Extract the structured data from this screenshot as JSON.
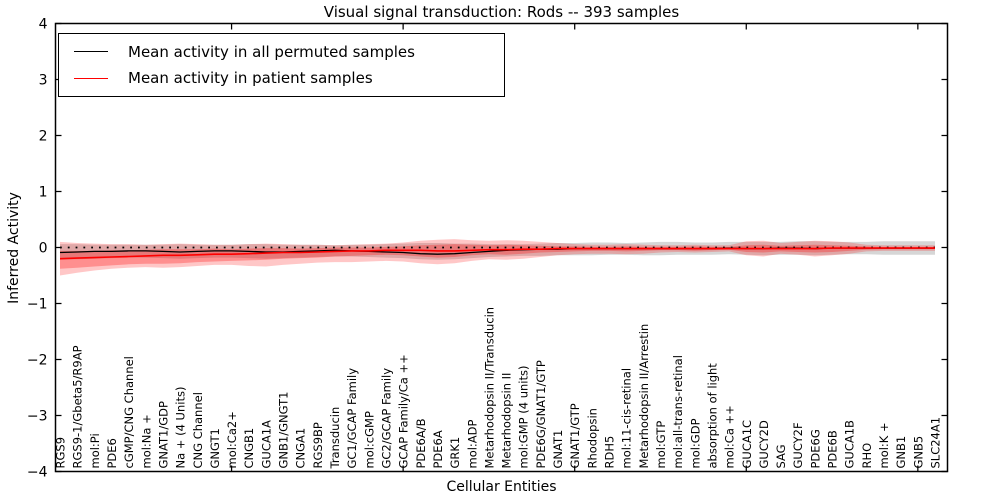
{
  "figure": {
    "title": "Visual signal transduction: Rods -- 393 samples",
    "xlabel": "Cellular Entities",
    "ylabel": "Inferred Activity",
    "legend": {
      "items": [
        {
          "label": "Mean activity in all permuted samples",
          "color": "#000000"
        },
        {
          "label": "Mean activity in patient samples",
          "color": "#ff0000"
        }
      ]
    }
  },
  "chart_data": {
    "type": "line",
    "title": "Visual signal transduction: Rods -- 393 samples",
    "xlabel": "Cellular Entities",
    "ylabel": "Inferred Activity",
    "ylim": [
      -4,
      4
    ],
    "yticks": [
      4,
      3,
      2,
      1,
      0,
      -1,
      -2,
      -3,
      -4
    ],
    "xtick_positions": [
      10,
      20,
      30,
      40,
      50
    ],
    "grid": false,
    "legend_position": "upper left",
    "zero_line": {
      "value": 0,
      "style": "dotted",
      "color": "#000000"
    },
    "categories": [
      "RGS9",
      "RGS9-1/Gbeta5/R9AP",
      "mol:Pi",
      "PDE6",
      "cGMP/CNG Channel",
      "mol:Na +",
      "GNAT1/GDP",
      "Na + (4 Units)",
      "CNG Channel",
      "GNGT1",
      "mol:Ca2+",
      "CNGB1",
      "GUCA1A",
      "GNB1/GNGT1",
      "CNGA1",
      "RGS9BP",
      "Transducin",
      "GC1/GCAP Family",
      "mol:cGMP",
      "GC2/GCAP Family",
      "GCAP Family/Ca ++",
      "PDE6A/B",
      "PDE6A",
      "GRK1",
      "mol:ADP",
      "Metarhodopsin II/Transducin",
      "Metarhodopsin II",
      "mol:GMP (4 units)",
      "PDE6G/GNAT1/GTP",
      "GNAT1",
      "GNAT1/GTP",
      "Rhodopsin",
      "RDH5",
      "mol:11-cis-retinal",
      "Metarhodopsin II/Arrestin",
      "mol:GTP",
      "mol:all-trans-retinal",
      "mol:GDP",
      "absorption of light",
      "mol:Ca ++",
      "GUCA1C",
      "GUCY2D",
      "SAG",
      "GUCY2F",
      "PDE6G",
      "PDE6B",
      "GUCA1B",
      "RHO",
      "mol:K +",
      "GNB1",
      "GNB5",
      "SLC24A1"
    ],
    "series": [
      {
        "name": "Mean activity in all permuted samples",
        "color": "#000000",
        "values": [
          -0.09,
          -0.08,
          -0.07,
          -0.07,
          -0.06,
          -0.06,
          -0.07,
          -0.08,
          -0.07,
          -0.06,
          -0.06,
          -0.07,
          -0.08,
          -0.08,
          -0.07,
          -0.06,
          -0.05,
          -0.06,
          -0.07,
          -0.08,
          -0.09,
          -0.11,
          -0.12,
          -0.11,
          -0.09,
          -0.07,
          -0.05,
          -0.04,
          -0.03,
          -0.03,
          -0.02,
          -0.02,
          -0.02,
          -0.02,
          -0.02,
          -0.02,
          -0.02,
          -0.02,
          -0.02,
          -0.01,
          -0.02,
          -0.02,
          -0.01,
          -0.01,
          -0.02,
          -0.01,
          -0.01,
          -0.01,
          -0.01,
          -0.01,
          -0.01,
          -0.01
        ]
      },
      {
        "name": "Mean activity in patient samples",
        "color": "#ff0000",
        "values": [
          -0.2,
          -0.19,
          -0.18,
          -0.17,
          -0.16,
          -0.15,
          -0.14,
          -0.14,
          -0.13,
          -0.12,
          -0.12,
          -0.11,
          -0.1,
          -0.09,
          -0.09,
          -0.08,
          -0.07,
          -0.06,
          -0.06,
          -0.05,
          -0.05,
          -0.05,
          -0.06,
          -0.06,
          -0.05,
          -0.04,
          -0.04,
          -0.03,
          -0.03,
          -0.02,
          -0.02,
          -0.02,
          -0.02,
          -0.02,
          -0.02,
          -0.02,
          -0.02,
          -0.02,
          -0.02,
          -0.02,
          -0.02,
          -0.02,
          -0.02,
          -0.02,
          -0.02,
          -0.01,
          -0.01,
          -0.01,
          -0.01,
          -0.01,
          -0.01,
          -0.01
        ]
      }
    ],
    "bands": [
      {
        "name": "permuted-samples-range",
        "color": "#999999",
        "opacity": 0.4,
        "upper": [
          0.06,
          0.06,
          0.05,
          0.05,
          0.05,
          0.05,
          0.05,
          0.06,
          0.05,
          0.05,
          0.05,
          0.06,
          0.06,
          0.05,
          0.05,
          0.05,
          0.04,
          0.05,
          0.05,
          0.06,
          0.07,
          0.08,
          0.08,
          0.07,
          0.07,
          0.06,
          0.06,
          0.06,
          0.07,
          0.08,
          0.08,
          0.09,
          0.09,
          0.08,
          0.09,
          0.1,
          0.1,
          0.09,
          0.09,
          0.1,
          0.1,
          0.1,
          0.1,
          0.11,
          0.11,
          0.1,
          0.1,
          0.1,
          0.11,
          0.11,
          0.11,
          0.11
        ],
        "lower": [
          -0.22,
          -0.21,
          -0.2,
          -0.19,
          -0.18,
          -0.18,
          -0.19,
          -0.2,
          -0.19,
          -0.18,
          -0.18,
          -0.19,
          -0.2,
          -0.19,
          -0.18,
          -0.17,
          -0.16,
          -0.16,
          -0.17,
          -0.18,
          -0.19,
          -0.21,
          -0.22,
          -0.21,
          -0.19,
          -0.17,
          -0.16,
          -0.15,
          -0.15,
          -0.14,
          -0.14,
          -0.14,
          -0.13,
          -0.13,
          -0.14,
          -0.14,
          -0.13,
          -0.13,
          -0.13,
          -0.12,
          -0.13,
          -0.14,
          -0.13,
          -0.13,
          -0.14,
          -0.13,
          -0.12,
          -0.12,
          -0.13,
          -0.13,
          -0.13,
          -0.13
        ]
      },
      {
        "name": "patient-samples-outer-range",
        "color": "#ff0000",
        "opacity": 0.22,
        "upper": [
          0.1,
          0.08,
          0.07,
          0.06,
          0.06,
          0.05,
          0.06,
          0.07,
          0.06,
          0.05,
          0.05,
          0.06,
          0.07,
          0.06,
          0.05,
          0.05,
          0.04,
          0.05,
          0.06,
          0.07,
          0.09,
          0.12,
          0.14,
          0.15,
          0.13,
          0.12,
          0.13,
          0.12,
          0.1,
          0.08,
          0.06,
          0.05,
          0.05,
          0.06,
          0.05,
          0.04,
          0.04,
          0.05,
          0.04,
          0.04,
          0.11,
          0.12,
          0.08,
          0.1,
          0.12,
          0.11,
          0.09,
          0.05,
          0.04,
          0.04,
          0.04,
          0.04
        ],
        "lower": [
          -0.5,
          -0.45,
          -0.41,
          -0.38,
          -0.36,
          -0.35,
          -0.36,
          -0.35,
          -0.33,
          -0.31,
          -0.31,
          -0.33,
          -0.34,
          -0.31,
          -0.29,
          -0.27,
          -0.26,
          -0.26,
          -0.25,
          -0.24,
          -0.25,
          -0.28,
          -0.3,
          -0.28,
          -0.24,
          -0.21,
          -0.22,
          -0.2,
          -0.17,
          -0.14,
          -0.12,
          -0.11,
          -0.11,
          -0.12,
          -0.11,
          -0.09,
          -0.08,
          -0.09,
          -0.08,
          -0.07,
          -0.14,
          -0.16,
          -0.11,
          -0.13,
          -0.16,
          -0.14,
          -0.11,
          -0.07,
          -0.06,
          -0.06,
          -0.06,
          -0.06
        ]
      },
      {
        "name": "patient-samples-inner-range",
        "color": "#ff0000",
        "opacity": 0.28,
        "upper": [
          -0.06,
          -0.06,
          -0.06,
          -0.05,
          -0.05,
          -0.04,
          -0.03,
          -0.03,
          -0.03,
          -0.02,
          -0.03,
          -0.02,
          -0.01,
          -0.01,
          -0.02,
          -0.01,
          0.0,
          0.0,
          0.0,
          0.01,
          0.02,
          0.04,
          0.05,
          0.06,
          0.05,
          0.04,
          0.05,
          0.04,
          0.03,
          0.02,
          0.02,
          0.01,
          0.01,
          0.02,
          0.01,
          0.01,
          0.01,
          0.02,
          0.01,
          0.01,
          0.04,
          0.05,
          0.03,
          0.04,
          0.05,
          0.04,
          0.03,
          0.02,
          0.01,
          0.01,
          0.01,
          0.01
        ],
        "lower": [
          -0.38,
          -0.36,
          -0.34,
          -0.32,
          -0.3,
          -0.29,
          -0.29,
          -0.28,
          -0.26,
          -0.25,
          -0.24,
          -0.23,
          -0.22,
          -0.2,
          -0.19,
          -0.18,
          -0.16,
          -0.15,
          -0.14,
          -0.13,
          -0.14,
          -0.16,
          -0.18,
          -0.17,
          -0.14,
          -0.12,
          -0.13,
          -0.11,
          -0.09,
          -0.08,
          -0.07,
          -0.06,
          -0.06,
          -0.07,
          -0.06,
          -0.05,
          -0.05,
          -0.06,
          -0.05,
          -0.04,
          -0.08,
          -0.09,
          -0.07,
          -0.08,
          -0.09,
          -0.08,
          -0.06,
          -0.04,
          -0.03,
          -0.03,
          -0.03,
          -0.03
        ]
      }
    ]
  }
}
